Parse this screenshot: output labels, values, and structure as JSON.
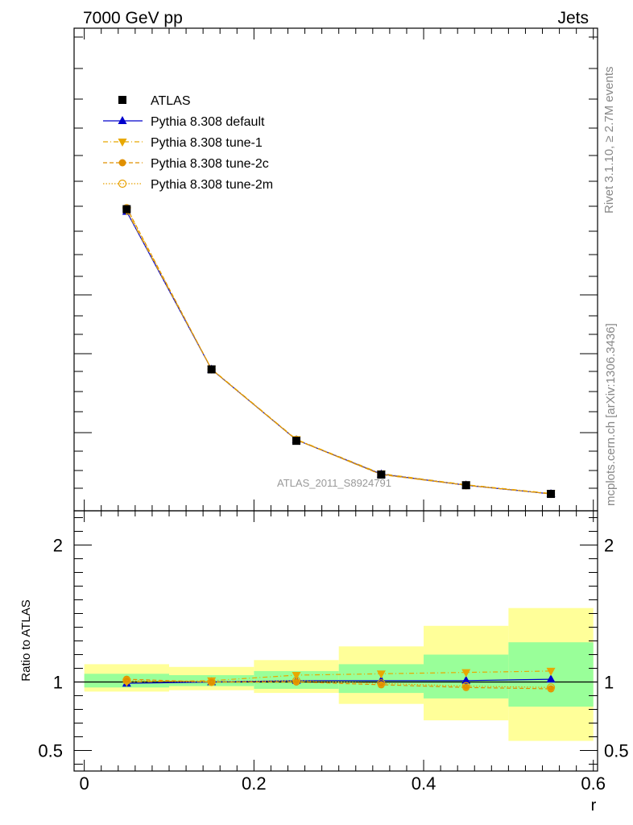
{
  "header": {
    "left": "7000 GeV pp",
    "right": "Jets"
  },
  "side_text": {
    "rivet": "Rivet 3.1.10, ≥ 2.7M events",
    "mcplots": "mcplots.cern.ch [arXiv:1306.3436]"
  },
  "watermark": "ATLAS_2011_S8924791",
  "colors": {
    "atlas": "#000000",
    "default": "#0000cc",
    "tune1": "#e8a800",
    "tune2c": "#e09000",
    "tune2m": "#e8a000",
    "band_outer": "#ffff99",
    "band_inner": "#99ff99"
  },
  "chart_data": [
    {
      "type": "line",
      "panel": "main",
      "x": [
        0.05,
        0.15,
        0.25,
        0.35,
        0.45,
        0.55
      ],
      "ylim": [
        0.0,
        1.0
      ],
      "y_axis_labels_shown": false,
      "legend_placement": "top-left",
      "series": [
        {
          "name": "ATLAS",
          "style": "square-marker",
          "values": [
            0.625,
            0.293,
            0.145,
            0.075,
            0.053,
            0.035
          ]
        },
        {
          "name": "Pythia 8.308 default",
          "style": "triangle-up-solid",
          "values": [
            0.62,
            0.293,
            0.147,
            0.076,
            0.053,
            0.035
          ]
        },
        {
          "name": "Pythia 8.308 tune-1",
          "style": "triangle-down-dashdot",
          "values": [
            0.622,
            0.294,
            0.148,
            0.077,
            0.054,
            0.036
          ]
        },
        {
          "name": "Pythia 8.308 tune-2c",
          "style": "circle-filled-dashed",
          "values": [
            0.628,
            0.293,
            0.147,
            0.075,
            0.053,
            0.035
          ]
        },
        {
          "name": "Pythia 8.308 tune-2m",
          "style": "circle-open-dotted",
          "values": [
            0.627,
            0.293,
            0.147,
            0.075,
            0.053,
            0.035
          ]
        }
      ]
    },
    {
      "type": "line",
      "panel": "ratio",
      "xlabel": "r",
      "ylabel": "Ratio to ATLAS",
      "xlim": [
        -0.012,
        0.605
      ],
      "ylim": [
        0.35,
        2.25
      ],
      "x_ticks": [
        "0",
        "0.2",
        "0.4",
        "0.6"
      ],
      "y_ticks": [
        "0.5",
        "1",
        "2"
      ],
      "bins": [
        [
          0.0,
          0.1
        ],
        [
          0.1,
          0.2
        ],
        [
          0.2,
          0.3
        ],
        [
          0.3,
          0.4
        ],
        [
          0.4,
          0.5
        ],
        [
          0.5,
          0.6
        ]
      ],
      "band_outer": {
        "low": [
          0.93,
          0.94,
          0.92,
          0.84,
          0.72,
          0.57
        ],
        "high": [
          1.13,
          1.11,
          1.16,
          1.26,
          1.41,
          1.54
        ]
      },
      "band_inner": {
        "low": [
          0.96,
          0.97,
          0.95,
          0.92,
          0.88,
          0.82
        ],
        "high": [
          1.06,
          1.05,
          1.08,
          1.13,
          1.2,
          1.29
        ]
      },
      "x": [
        0.05,
        0.15,
        0.25,
        0.35,
        0.45,
        0.55
      ],
      "series": [
        {
          "name": "Pythia 8.308 default",
          "values": [
            0.99,
            1.0,
            1.01,
            1.01,
            1.01,
            1.02
          ]
        },
        {
          "name": "Pythia 8.308 tune-1",
          "values": [
            1.0,
            1.01,
            1.05,
            1.06,
            1.07,
            1.08
          ]
        },
        {
          "name": "Pythia 8.308 tune-2c",
          "values": [
            1.02,
            1.0,
            1.0,
            0.98,
            0.96,
            0.95
          ]
        },
        {
          "name": "Pythia 8.308 tune-2m",
          "values": [
            1.01,
            1.0,
            1.01,
            0.99,
            0.97,
            0.96
          ]
        }
      ]
    }
  ]
}
